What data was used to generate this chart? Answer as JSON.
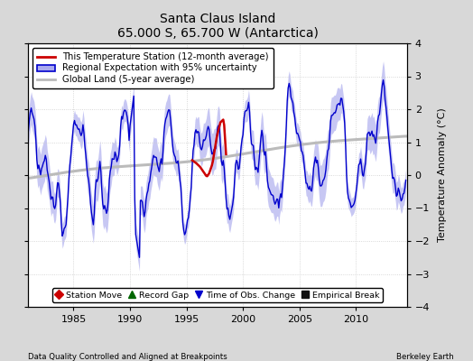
{
  "title": "Santa Claus Island",
  "subtitle": "65.000 S, 65.700 W (Antarctica)",
  "ylabel": "Temperature Anomaly (°C)",
  "footer_left": "Data Quality Controlled and Aligned at Breakpoints",
  "footer_right": "Berkeley Earth",
  "xlim": [
    1981.0,
    2014.5
  ],
  "ylim": [
    -4,
    4
  ],
  "yticks": [
    -4,
    -3,
    -2,
    -1,
    0,
    1,
    2,
    3,
    4
  ],
  "xticks": [
    1985,
    1990,
    1995,
    2000,
    2005,
    2010
  ],
  "bg_color": "#d8d8d8",
  "plot_bg_color": "#ffffff",
  "regional_line_color": "#0000cc",
  "regional_fill_color": "#aaaaee",
  "station_line_color": "#cc0000",
  "global_line_color": "#bbbbbb",
  "legend_items": [
    {
      "label": "This Temperature Station (12-month average)",
      "color": "#cc0000",
      "lw": 2
    },
    {
      "label": "Regional Expectation with 95% uncertainty",
      "color": "#0000cc",
      "lw": 2
    },
    {
      "label": "Global Land (5-year average)",
      "color": "#bbbbbb",
      "lw": 2
    }
  ],
  "bottom_legend": [
    {
      "label": "Station Move",
      "marker": "D",
      "color": "#cc0000"
    },
    {
      "label": "Record Gap",
      "marker": "^",
      "color": "#006600"
    },
    {
      "label": "Time of Obs. Change",
      "marker": "v",
      "color": "#0000cc"
    },
    {
      "label": "Empirical Break",
      "marker": "s",
      "color": "#111111"
    }
  ]
}
